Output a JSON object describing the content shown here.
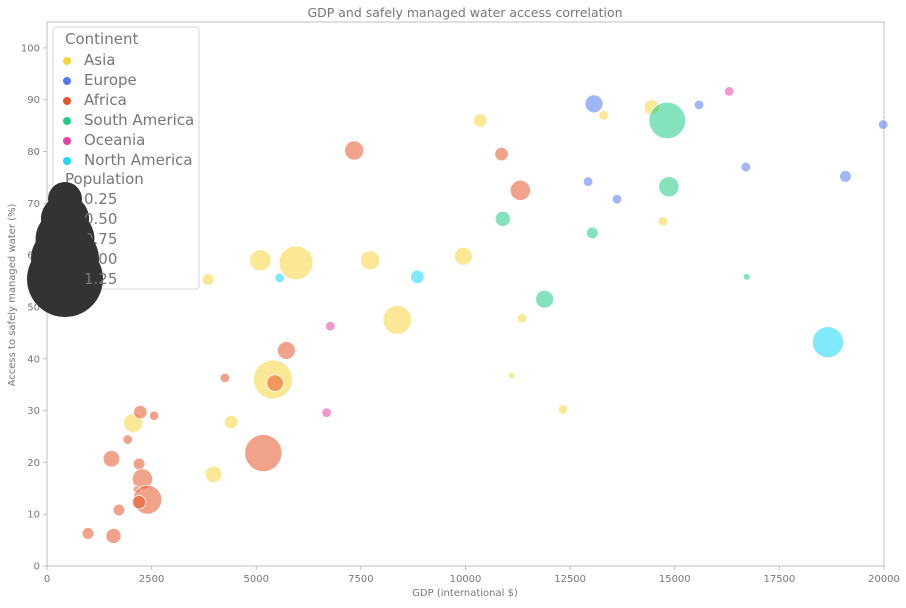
{
  "chart_data": {
    "type": "scatter",
    "title": "GDP and safely managed water access correlation",
    "xlabel": "GDP (international $)",
    "ylabel": "Access to safely managed water (%)",
    "xlim": [
      0,
      20000
    ],
    "ylim": [
      0,
      105
    ],
    "x_ticks": [
      0,
      2500,
      5000,
      7500,
      10000,
      12500,
      15000,
      17500,
      20000
    ],
    "x_tick_labels": [
      "0",
      "2500",
      "5000",
      "7500",
      "10000",
      "12500",
      "15000",
      "17500",
      "20000"
    ],
    "y_ticks": [
      0,
      10,
      20,
      30,
      40,
      50,
      60,
      70,
      80,
      90,
      100
    ],
    "y_tick_labels": [
      "0",
      "10",
      "20",
      "30",
      "40",
      "50",
      "60",
      "70",
      "80",
      "90",
      "100"
    ],
    "grid": false,
    "legend": {
      "placement": "top-left",
      "hue_title": "Continent",
      "size_title": "Population",
      "size_entries": [
        {
          "label": "0.25",
          "value": 0.25
        },
        {
          "label": "0.50",
          "value": 0.5
        },
        {
          "label": "0.75",
          "value": 0.75
        },
        {
          "label": "1.00",
          "value": 1.0
        },
        {
          "label": "1.25",
          "value": 1.25
        }
      ]
    },
    "series": [
      {
        "name": "Asia",
        "color": "#f5d63d",
        "points": [
          {
            "x": 14450,
            "y": 88.5,
            "size": 0.05
          },
          {
            "x": 13300,
            "y": 87,
            "size": 0.02
          },
          {
            "x": 10350,
            "y": 86,
            "size": 0.04
          },
          {
            "x": 14720,
            "y": 66.5,
            "size": 0.02
          },
          {
            "x": 5950,
            "y": 58.5,
            "size": 0.25
          },
          {
            "x": 5100,
            "y": 59,
            "size": 0.1
          },
          {
            "x": 7720,
            "y": 59,
            "size": 0.08
          },
          {
            "x": 9950,
            "y": 59.8,
            "size": 0.07
          },
          {
            "x": 3850,
            "y": 55.3,
            "size": 0.03
          },
          {
            "x": 8370,
            "y": 47.5,
            "size": 0.18
          },
          {
            "x": 11350,
            "y": 47.8,
            "size": 0.02
          },
          {
            "x": 5400,
            "y": 36,
            "size": 0.33
          },
          {
            "x": 11100,
            "y": 36.8,
            "size": 0.01
          },
          {
            "x": 12330,
            "y": 30.2,
            "size": 0.02
          },
          {
            "x": 4400,
            "y": 27.8,
            "size": 0.04
          },
          {
            "x": 2060,
            "y": 27.6,
            "size": 0.08
          },
          {
            "x": 3980,
            "y": 17.7,
            "size": 0.06
          }
        ]
      },
      {
        "name": "Europe",
        "color": "#5278f5",
        "points": [
          {
            "x": 13070,
            "y": 89.2,
            "size": 0.07
          },
          {
            "x": 15580,
            "y": 89,
            "size": 0.02
          },
          {
            "x": 19980,
            "y": 85.2,
            "size": 0.02
          },
          {
            "x": 16700,
            "y": 77,
            "size": 0.02
          },
          {
            "x": 19080,
            "y": 75.2,
            "size": 0.03
          },
          {
            "x": 12930,
            "y": 74.2,
            "size": 0.02
          },
          {
            "x": 13620,
            "y": 70.8,
            "size": 0.02
          }
        ]
      },
      {
        "name": "Africa",
        "color": "#e6552a",
        "points": [
          {
            "x": 7340,
            "y": 80.2,
            "size": 0.08
          },
          {
            "x": 10860,
            "y": 79.5,
            "size": 0.04
          },
          {
            "x": 11310,
            "y": 72.5,
            "size": 0.09
          },
          {
            "x": 5720,
            "y": 41.6,
            "size": 0.07
          },
          {
            "x": 4250,
            "y": 36.3,
            "size": 0.02
          },
          {
            "x": 5450,
            "y": 35.3,
            "size": 0.06
          },
          {
            "x": 2230,
            "y": 29.7,
            "size": 0.04
          },
          {
            "x": 2560,
            "y": 29,
            "size": 0.02
          },
          {
            "x": 1930,
            "y": 24.4,
            "size": 0.02
          },
          {
            "x": 5170,
            "y": 21.8,
            "size": 0.3
          },
          {
            "x": 1540,
            "y": 20.7,
            "size": 0.06
          },
          {
            "x": 2200,
            "y": 19.7,
            "size": 0.03
          },
          {
            "x": 2280,
            "y": 16.8,
            "size": 0.09
          },
          {
            "x": 2140,
            "y": 14.8,
            "size": 0.01
          },
          {
            "x": 2400,
            "y": 12.8,
            "size": 0.18
          },
          {
            "x": 2200,
            "y": 12.3,
            "size": 0.04
          },
          {
            "x": 1720,
            "y": 10.8,
            "size": 0.03
          },
          {
            "x": 980,
            "y": 6.3,
            "size": 0.03
          },
          {
            "x": 1590,
            "y": 5.8,
            "size": 0.05
          }
        ]
      },
      {
        "name": "South America",
        "color": "#1fcc85",
        "points": [
          {
            "x": 14820,
            "y": 86,
            "size": 0.29
          },
          {
            "x": 14860,
            "y": 73.2,
            "size": 0.09
          },
          {
            "x": 10890,
            "y": 67,
            "size": 0.05
          },
          {
            "x": 13030,
            "y": 64.3,
            "size": 0.03
          },
          {
            "x": 16720,
            "y": 55.8,
            "size": 0.01
          },
          {
            "x": 11890,
            "y": 51.5,
            "size": 0.07
          }
        ]
      },
      {
        "name": "Oceania",
        "color": "#e63fa8",
        "points": [
          {
            "x": 16300,
            "y": 91.6,
            "size": 0.02
          },
          {
            "x": 6770,
            "y": 46.3,
            "size": 0.02
          },
          {
            "x": 6680,
            "y": 29.6,
            "size": 0.02
          }
        ]
      },
      {
        "name": "North America",
        "color": "#1ad9f5",
        "points": [
          {
            "x": 5560,
            "y": 55.6,
            "size": 0.02
          },
          {
            "x": 8850,
            "y": 55.8,
            "size": 0.04
          },
          {
            "x": 18660,
            "y": 43.2,
            "size": 0.21
          }
        ]
      }
    ]
  }
}
